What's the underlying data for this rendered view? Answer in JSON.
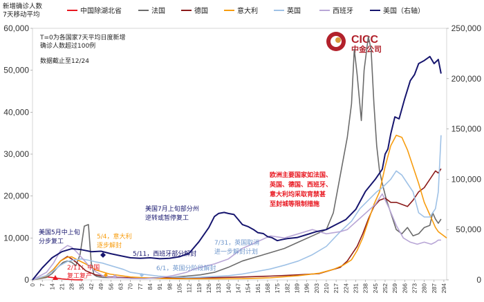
{
  "chart_data": {
    "type": "line",
    "title": "",
    "ylabel": [
      "新增确诊人数",
      "7天移动平均"
    ],
    "ylim_left": [
      0,
      60000
    ],
    "ylim_right": [
      0,
      250000
    ],
    "left_ticks": [
      "0",
      "10,000",
      "20,000",
      "30,000",
      "40,000",
      "50,000",
      "60,000"
    ],
    "right_ticks": [
      "0",
      "50,000",
      "100,000",
      "150,000",
      "200,000",
      "250,000"
    ],
    "x_ticks": [
      "0",
      "7",
      "14",
      "21",
      "28",
      "35",
      "42",
      "49",
      "56",
      "63",
      "70",
      "77",
      "84",
      "91",
      "98",
      "105",
      "112",
      "119",
      "126",
      "133",
      "140",
      "147",
      "154",
      "161",
      "168",
      "175",
      "182",
      "189",
      "196",
      "203",
      "210",
      "217",
      "224",
      "231",
      "238",
      "245",
      "252",
      "259",
      "266",
      "273",
      "280",
      "287",
      "294"
    ],
    "xlim": [
      0,
      296
    ],
    "notes": [
      "T=0为各国家7天平均日度新增",
      "确诊人数超过100例",
      "数据截止至12/24"
    ],
    "series": [
      {
        "name": "中国除湖北省",
        "color": "#e8161f",
        "axis": "left",
        "x": [
          0,
          3,
          6,
          9,
          12,
          15,
          18,
          21,
          24,
          27,
          30,
          33,
          36
        ],
        "y": [
          120,
          300,
          550,
          720,
          640,
          520,
          380,
          250,
          150,
          80,
          40,
          20,
          10
        ]
      },
      {
        "name": "法国",
        "color": "#6b6b6b",
        "axis": "left",
        "x": [
          0,
          10,
          14,
          18,
          22,
          25,
          28,
          31,
          34,
          37,
          40,
          42,
          44,
          46,
          50,
          60,
          70,
          80,
          90,
          100,
          110,
          120,
          130,
          140,
          150,
          160,
          170,
          180,
          190,
          200,
          210,
          215,
          220,
          225,
          228,
          230,
          232,
          235,
          237,
          240,
          242,
          244,
          246,
          248,
          250,
          253,
          256,
          260,
          264,
          268,
          272,
          276,
          280,
          284,
          286,
          288,
          290,
          292
        ],
        "y": [
          0,
          600,
          1500,
          3000,
          4200,
          4500,
          4200,
          3400,
          6000,
          12800,
          13200,
          4000,
          1200,
          800,
          600,
          500,
          450,
          400,
          550,
          700,
          900,
          1200,
          1800,
          3000,
          4500,
          5500,
          6500,
          7500,
          9000,
          10500,
          12000,
          16000,
          25000,
          34000,
          42000,
          55000,
          49000,
          38000,
          50000,
          58000,
          55000,
          42000,
          32000,
          26000,
          23000,
          19000,
          16000,
          12000,
          11000,
          12500,
          10500,
          11000,
          12500,
          13000,
          16000,
          14500,
          13500,
          14500
        ]
      },
      {
        "name": "德国",
        "color": "#8b1a1a",
        "axis": "left",
        "x": [
          0,
          10,
          15,
          20,
          25,
          28,
          32,
          38,
          45,
          55,
          70,
          90,
          110,
          130,
          150,
          170,
          190,
          205,
          210,
          215,
          220,
          225,
          228,
          232,
          236,
          240,
          244,
          248,
          252,
          256,
          260,
          264,
          268,
          272,
          276,
          280,
          284,
          286,
          288,
          290,
          292
        ],
        "y": [
          0,
          1000,
          2500,
          4500,
          5600,
          5000,
          4000,
          2200,
          1200,
          700,
          500,
          450,
          500,
          550,
          700,
          900,
          1200,
          1500,
          2000,
          2500,
          3000,
          4500,
          6000,
          8000,
          11000,
          14500,
          17500,
          19000,
          19500,
          18500,
          18500,
          18000,
          17500,
          19000,
          21000,
          22000,
          24000,
          25000,
          26000,
          25500,
          26500
        ]
      },
      {
        "name": "意大利",
        "color": "#f79c0e",
        "axis": "left",
        "x": [
          0,
          10,
          15,
          20,
          25,
          28,
          32,
          38,
          45,
          55,
          70,
          90,
          110,
          130,
          150,
          170,
          190,
          205,
          215,
          222,
          228,
          232,
          236,
          240,
          244,
          248,
          252,
          256,
          260,
          264,
          268,
          272,
          276,
          280,
          284,
          286,
          288,
          290,
          292,
          296
        ],
        "y": [
          0,
          900,
          2500,
          4500,
          5400,
          5500,
          4800,
          3800,
          2400,
          1400,
          700,
          350,
          250,
          250,
          300,
          500,
          1000,
          1600,
          2500,
          3500,
          4800,
          7000,
          10000,
          14000,
          18000,
          21000,
          27000,
          32000,
          34500,
          34000,
          31000,
          27000,
          23000,
          18500,
          15500,
          14000,
          12500,
          11500,
          11000,
          10000
        ]
      },
      {
        "name": "英国",
        "color": "#9ec1e6",
        "axis": "left",
        "x": [
          0,
          10,
          15,
          20,
          25,
          30,
          35,
          40,
          45,
          50,
          55,
          60,
          65,
          70,
          80,
          90,
          100,
          110,
          120,
          130,
          140,
          150,
          160,
          170,
          180,
          190,
          200,
          210,
          220,
          228,
          234,
          240,
          246,
          250,
          256,
          260,
          264,
          268,
          272,
          276,
          280,
          284,
          288,
          290,
          292
        ],
        "y": [
          0,
          1000,
          2200,
          3500,
          4400,
          4800,
          5000,
          4700,
          4300,
          4000,
          3500,
          3000,
          2500,
          1800,
          1300,
          900,
          700,
          600,
          650,
          800,
          1000,
          1400,
          2000,
          2600,
          3500,
          4500,
          6000,
          8000,
          11500,
          14000,
          17000,
          19000,
          21000,
          22000,
          24000,
          26000,
          25000,
          23000,
          21000,
          16000,
          15000,
          15000,
          17000,
          21000,
          34500
        ]
      },
      {
        "name": "西班牙",
        "color": "#b8a6d6",
        "axis": "left",
        "x": [
          0,
          10,
          15,
          20,
          25,
          28,
          32,
          36,
          40,
          45,
          50,
          55,
          60,
          70,
          80,
          90,
          100,
          110,
          115,
          120,
          125,
          130,
          140,
          150,
          160,
          170,
          180,
          190,
          200,
          210,
          220,
          225,
          230,
          235,
          240,
          245,
          250,
          255,
          260,
          265,
          270,
          275,
          280,
          285,
          288,
          290,
          292
        ],
        "y": [
          0,
          1800,
          4000,
          7000,
          8200,
          7800,
          6500,
          5000,
          3500,
          2000,
          1000,
          600,
          500,
          350,
          300,
          500,
          1000,
          1800,
          2500,
          3000,
          3400,
          3800,
          5000,
          7500,
          9000,
          10500,
          10000,
          11000,
          12000,
          11000,
          11500,
          12000,
          13500,
          15000,
          16500,
          18000,
          20500,
          17000,
          13000,
          10000,
          9000,
          8500,
          9000,
          8500,
          9000,
          9500,
          9500
        ]
      },
      {
        "name": "美国（右轴）",
        "color": "#16156e",
        "axis": "right",
        "x": [
          0,
          7,
          14,
          21,
          28,
          35,
          42,
          49,
          56,
          63,
          70,
          77,
          84,
          91,
          98,
          105,
          112,
          119,
          126,
          130,
          133,
          137,
          140,
          144,
          147,
          150,
          154,
          158,
          161,
          165,
          168,
          171,
          175,
          178,
          182,
          189,
          196,
          203,
          210,
          217,
          224,
          231,
          238,
          245,
          250,
          252,
          254,
          256,
          259,
          262,
          266,
          270,
          273,
          276,
          280,
          284,
          287,
          290,
          292
        ],
        "y": [
          0,
          12000,
          22000,
          28000,
          31000,
          30000,
          28000,
          28500,
          26000,
          24000,
          22000,
          21500,
          22000,
          21000,
          21500,
          23000,
          26500,
          38000,
          52000,
          63000,
          66000,
          67000,
          66000,
          65000,
          60000,
          55000,
          53000,
          50000,
          47000,
          46000,
          43000,
          42000,
          39000,
          40000,
          41000,
          42000,
          45000,
          48000,
          50000,
          55000,
          60000,
          70000,
          88000,
          100000,
          110000,
          125000,
          130000,
          145000,
          162000,
          160000,
          180000,
          198000,
          204000,
          215000,
          218000,
          222000,
          215000,
          219000,
          205000
        ]
      }
    ],
    "annotations": [
      {
        "text": "美国5月中上旬",
        "text2": "分步复工",
        "color": "#16156e"
      },
      {
        "text": "2/11：中国",
        "text2": "复工复产",
        "color": "#e8161f"
      },
      {
        "text": "5/4，意大利",
        "text2": "逐步解封",
        "color": "#f79c0e"
      },
      {
        "text": "5/11，西班牙部分解封",
        "color": "#16156e"
      },
      {
        "text": "6/1，英国分阶段解封",
        "color": "#6f97cc"
      },
      {
        "text": "美国7月上旬部分州",
        "text2": "逆转或暂停复工",
        "color": "#16156e"
      },
      {
        "text": "7/31，英国取消",
        "text2": "进一步解封计划",
        "color": "#6f97cc"
      },
      {
        "text": "欧洲主要国家如法国、",
        "text2": "英国、德国、西班牙、",
        "text3": "意大利均采取宵禁甚",
        "text4": "至封城等限制措施",
        "color": "#e8161f"
      }
    ],
    "legend_position": "top"
  },
  "logo": {
    "text_top": "CICC",
    "text_bottom": "中金公司",
    "color": "#b2212b"
  }
}
